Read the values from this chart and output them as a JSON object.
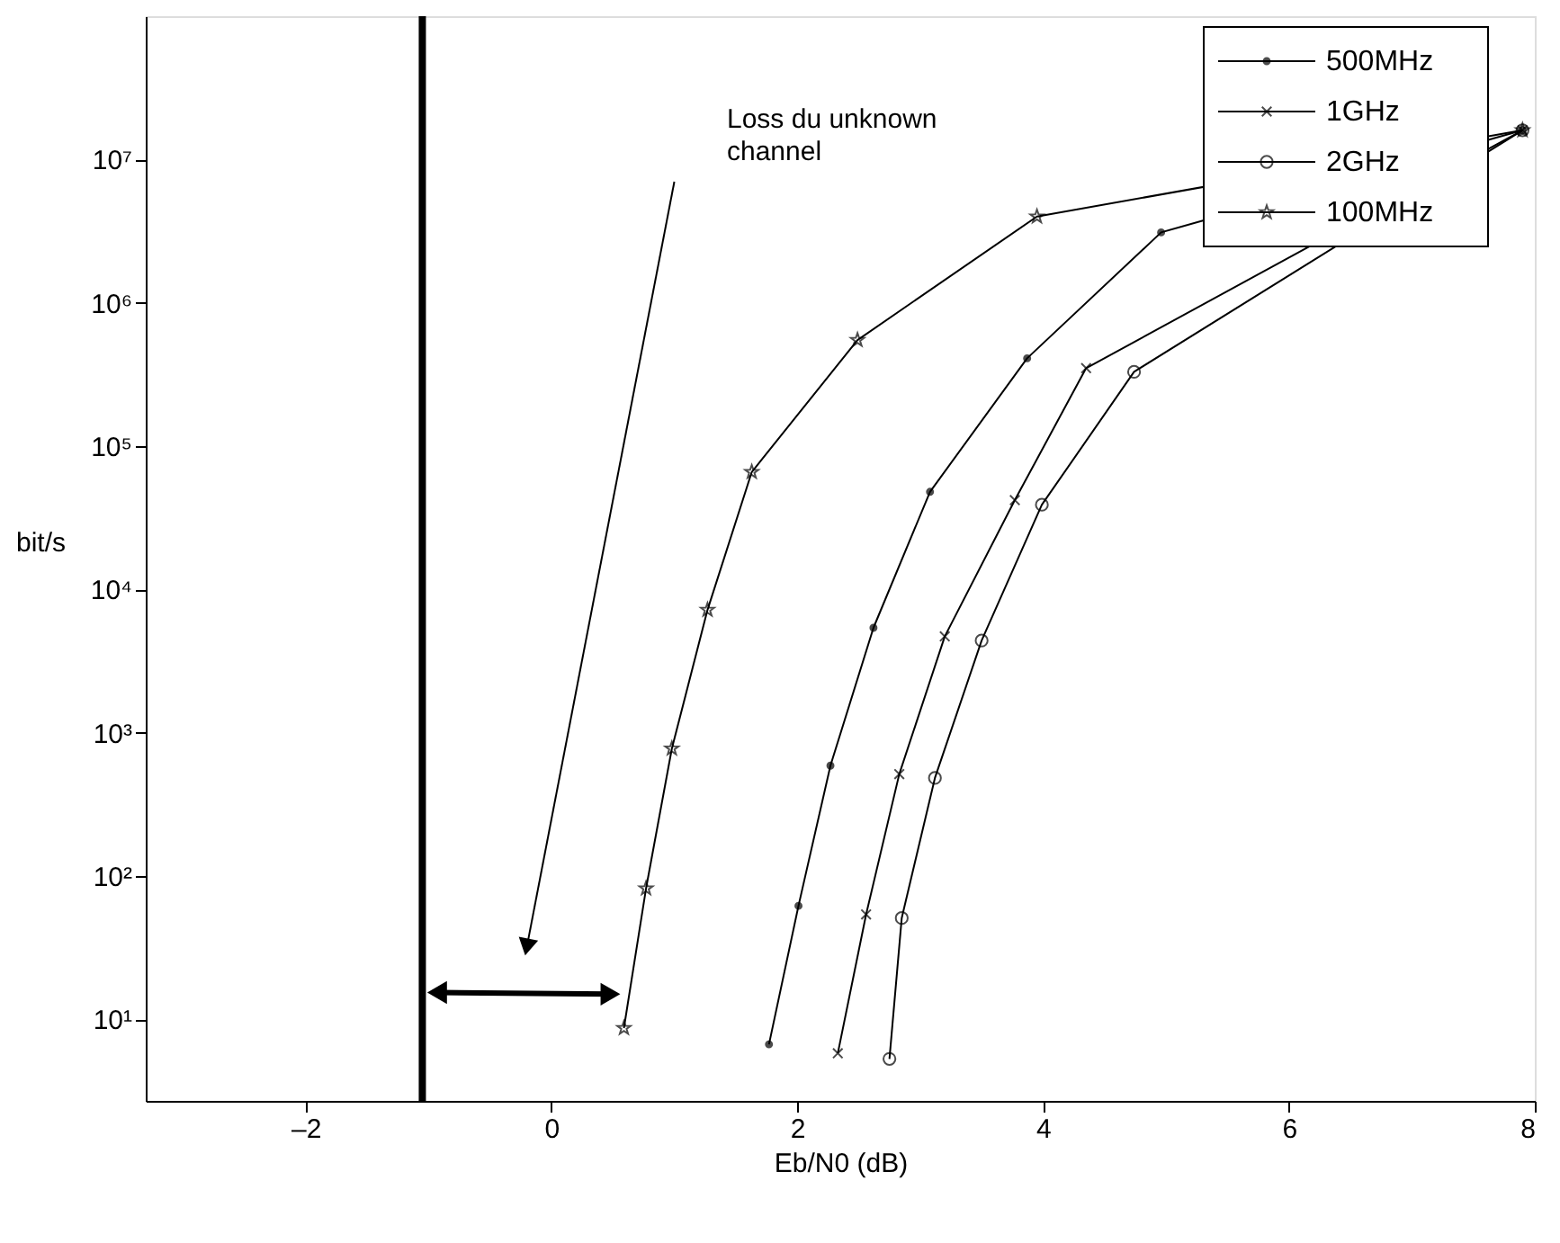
{
  "chart_data": {
    "type": "line",
    "xlabel": "Eb/N0 (dB)",
    "ylabel": "bit/s",
    "log": "y",
    "grid": false,
    "legend": "top right",
    "xlim": [
      -3.3,
      8
    ],
    "xticks": [
      {
        "value": -2,
        "label": "–2"
      },
      0,
      2,
      4,
      6,
      8
    ],
    "ylim": [
      2.7,
      100000000
    ],
    "yticks": [
      {
        "value": 10,
        "label": "10¹"
      },
      {
        "value": 100,
        "label": "10²"
      },
      {
        "value": 1000,
        "label": "10³"
      },
      {
        "value": 10000,
        "label": "10⁴"
      },
      {
        "value": 100000,
        "label": "10⁵"
      },
      {
        "value": 1000000,
        "label": "10⁶"
      },
      {
        "value": 10000000,
        "label": "10⁷"
      }
    ],
    "series": [
      {
        "name": "500MHz",
        "color": "#000000",
        "marker": "dot",
        "x": [
          1.77,
          2.01,
          2.27,
          2.62,
          3.08,
          3.87,
          4.96,
          7.9
        ],
        "values": [
          6.7,
          62,
          590,
          5400,
          48000,
          410000,
          3100000,
          16000000
        ]
      },
      {
        "name": "1GHz",
        "color": "#000000",
        "marker": "cross",
        "x": [
          2.33,
          2.56,
          2.83,
          3.2,
          3.77,
          4.35,
          7.9
        ],
        "values": [
          5.8,
          54,
          515,
          4700,
          42000,
          350000,
          16000000
        ]
      },
      {
        "name": "2GHz",
        "color": "#000000",
        "marker": "circle",
        "x": [
          2.75,
          2.85,
          3.12,
          3.5,
          3.99,
          4.74,
          7.9
        ],
        "values": [
          5.3,
          51,
          484,
          4400,
          39000,
          330000,
          16000000
        ]
      },
      {
        "name": "100MHz",
        "color": "#000000",
        "marker": "star",
        "x": [
          0.59,
          0.77,
          0.98,
          1.27,
          1.63,
          2.49,
          3.95,
          7.9
        ],
        "values": [
          8.7,
          82,
          776,
          7200,
          66000,
          550000,
          4000000,
          16000000
        ]
      }
    ],
    "ref_lines": [
      {
        "axis": "x",
        "value": -1.05,
        "color": "#000000"
      }
    ],
    "annotations": [
      "Loss du unknown channel"
    ]
  }
}
